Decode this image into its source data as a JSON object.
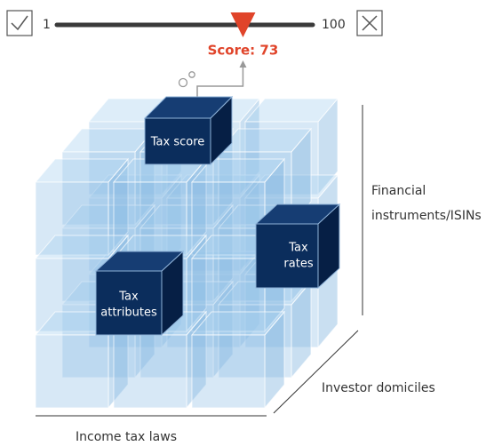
{
  "slider": {
    "min": 1,
    "max": 100,
    "value": 73,
    "score_label": "Score: 73"
  },
  "cube": {
    "tax_score": "Tax score",
    "tax_rates": [
      "Tax",
      "rates"
    ],
    "tax_attributes": [
      "Tax",
      "attributes"
    ]
  },
  "axes": {
    "vertical": [
      "Financial",
      "instruments/ISINs"
    ],
    "depth": "Investor domiciles",
    "horizontal": "Income tax laws"
  }
}
